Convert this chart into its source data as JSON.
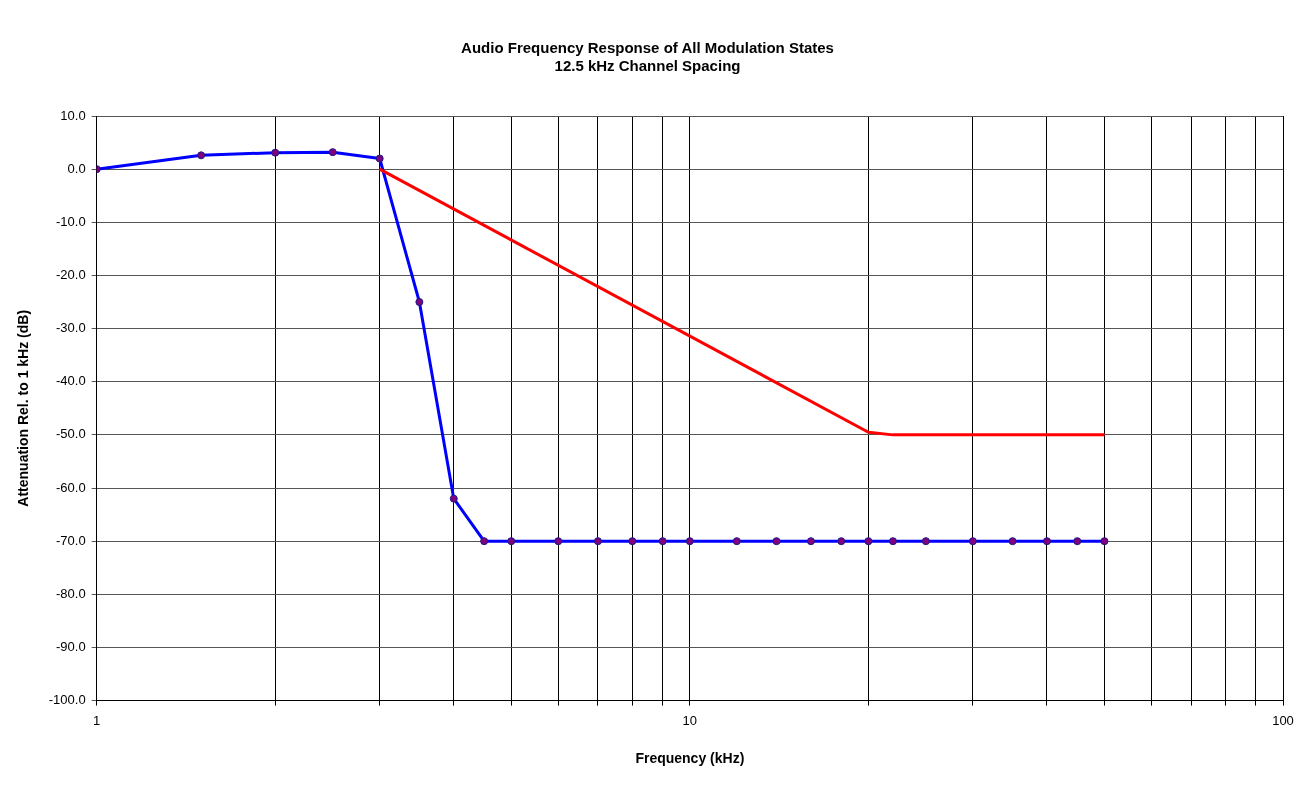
{
  "chart_data": {
    "type": "line",
    "title": "Audio Frequency Response of All Modulation States",
    "subtitle": "12.5 kHz Channel Spacing",
    "xlabel": "Frequency (kHz)",
    "ylabel": "Attenuation Rel. to 1 kHz (dB)",
    "log": "x",
    "grid": true,
    "legend": false,
    "xlim": [
      1,
      100
    ],
    "xticks": [
      1,
      {
        "value": 2,
        "label": null
      },
      {
        "value": 3,
        "label": null
      },
      {
        "value": 4,
        "label": null
      },
      {
        "value": 5,
        "label": null
      },
      {
        "value": 6,
        "label": null
      },
      {
        "value": 7,
        "label": null
      },
      {
        "value": 8,
        "label": null
      },
      {
        "value": 9,
        "label": null
      },
      10,
      {
        "value": 20,
        "label": null
      },
      {
        "value": 30,
        "label": null
      },
      {
        "value": 40,
        "label": null
      },
      {
        "value": 50,
        "label": null
      },
      {
        "value": 60,
        "label": null
      },
      {
        "value": 70,
        "label": null
      },
      {
        "value": 80,
        "label": null
      },
      {
        "value": 90,
        "label": null
      },
      100
    ],
    "ylim": [
      -100,
      10
    ],
    "yticks": [
      {
        "value": -100,
        "label": "-100.0"
      },
      {
        "value": -90,
        "label": "-90.0"
      },
      {
        "value": -80,
        "label": "-80.0"
      },
      {
        "value": -70,
        "label": "-70.0"
      },
      {
        "value": -60,
        "label": "-60.0"
      },
      {
        "value": -50,
        "label": "-50.0"
      },
      {
        "value": -40,
        "label": "-40.0"
      },
      {
        "value": -30,
        "label": "-30.0"
      },
      {
        "value": -20,
        "label": "-20.0"
      },
      {
        "value": -10,
        "label": "-10.0"
      },
      {
        "value": 0,
        "label": "0.0"
      },
      {
        "value": 10,
        "label": "10.0"
      }
    ],
    "series": [
      {
        "color": "#ff0000",
        "marker": "none",
        "x": [
          3,
          20,
          22,
          50
        ],
        "values": [
          0,
          -49.5,
          -50,
          -50
        ]
      },
      {
        "color": "#0000ff",
        "marker": "circle",
        "x": [
          1,
          1.5,
          2,
          2.5,
          3,
          3.5,
          4,
          4.5,
          5,
          6,
          7,
          8,
          9,
          10,
          12,
          14,
          16,
          18,
          20,
          22,
          25,
          30,
          35,
          40,
          45,
          50
        ],
        "values": [
          0,
          2.6,
          3.1,
          3.2,
          2.0,
          -25,
          -62,
          -70,
          -70,
          -70,
          -70,
          -70,
          -70,
          -70,
          -70,
          -70,
          -70,
          -70,
          -70,
          -70,
          -70,
          -70,
          -70,
          -70,
          -70,
          -70
        ]
      }
    ]
  }
}
